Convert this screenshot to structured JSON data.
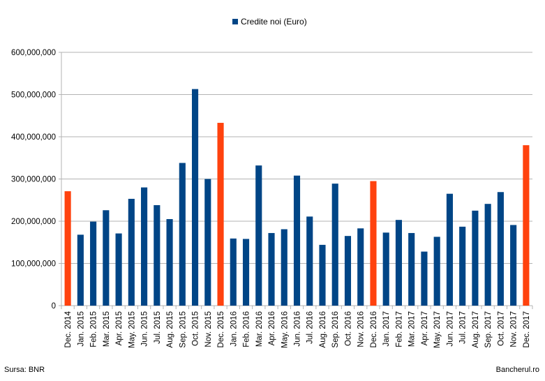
{
  "chart_data": {
    "type": "bar",
    "legend": {
      "label": "Credite noi (Euro)",
      "position": "top-center"
    },
    "categories": [
      "Dec. 2014",
      "Jan. 2015",
      "Feb. 2015",
      "Mar. 2015",
      "Apr. 2015",
      "May. 2015",
      "Jun. 2015",
      "Jul. 2015",
      "Aug. 2015",
      "Sep. 2015",
      "Oct. 2015",
      "Nov. 2015",
      "Dec. 2015",
      "Jan. 2016",
      "Feb. 2016",
      "Mar. 2016",
      "Apr. 2016",
      "May. 2016",
      "Jun. 2016",
      "Jul. 2016",
      "Aug. 2016",
      "Sep. 2016",
      "Oct. 2016",
      "Nov. 2016",
      "Dec. 2016",
      "Jan. 2017",
      "Feb. 2017",
      "Mar. 2017",
      "Apr. 2017",
      "May. 2017",
      "Jun. 2017",
      "Jul. 2017",
      "Aug. 2017",
      "Sep. 2017",
      "Oct. 2017",
      "Nov. 2017",
      "Dec. 2017"
    ],
    "series": [
      {
        "name": "Credite noi (Euro)",
        "values": [
          271000000,
          168000000,
          199000000,
          226000000,
          171000000,
          253000000,
          280000000,
          238000000,
          205000000,
          338000000,
          513000000,
          300000000,
          433000000,
          159000000,
          158000000,
          332000000,
          172000000,
          181000000,
          308000000,
          211000000,
          144000000,
          289000000,
          165000000,
          183000000,
          295000000,
          173000000,
          203000000,
          172000000,
          128000000,
          163000000,
          265000000,
          187000000,
          225000000,
          241000000,
          269000000,
          191000000,
          380000000
        ]
      }
    ],
    "highlight_categories": [
      "Dec. 2014",
      "Dec. 2015",
      "Dec. 2016",
      "Dec. 2017"
    ],
    "ylim": [
      0,
      600000000
    ],
    "yticks": [
      0,
      100000000,
      200000000,
      300000000,
      400000000,
      500000000,
      600000000
    ],
    "ytick_labels": [
      "0",
      "100,000,000",
      "200,000,000",
      "300,000,000",
      "400,000,000",
      "500,000,000",
      "600,000,000"
    ],
    "grid": true,
    "colors": {
      "bar": "#004586",
      "highlight": "#ff420e",
      "grid": "#b3b3b3",
      "axis": "#b3b3b3"
    }
  },
  "footer": {
    "source": "Sursa: BNR",
    "brand": "Bancherul.ro"
  }
}
